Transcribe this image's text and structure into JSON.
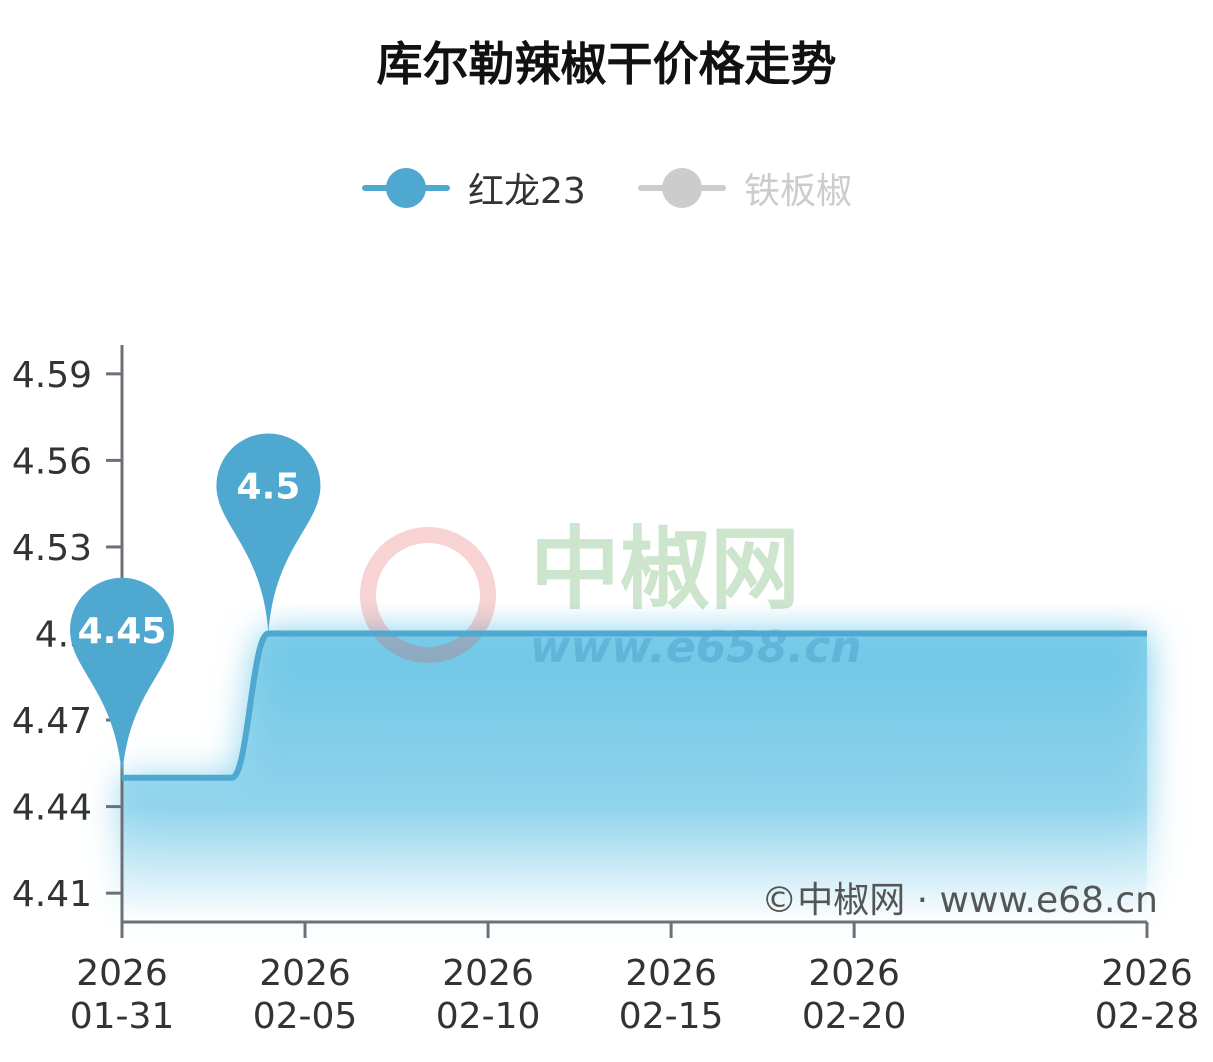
{
  "chart_data": {
    "type": "line",
    "title": "库尔勒辣椒干价格走势",
    "xlabel": "",
    "ylabel": "",
    "ylim": [
      4.4,
      4.6
    ],
    "yticks": [
      "4.41",
      "4.44",
      "4.47",
      "4.5",
      "4.53",
      "4.56",
      "4.59"
    ],
    "xticks": [
      {
        "date": "2026-01-31",
        "line1": "2026",
        "line2": "01-31"
      },
      {
        "date": "2026-02-05",
        "line1": "2026",
        "line2": "02-05"
      },
      {
        "date": "2026-02-10",
        "line1": "2026",
        "line2": "02-10"
      },
      {
        "date": "2026-02-15",
        "line1": "2026",
        "line2": "02-15"
      },
      {
        "date": "2026-02-20",
        "line1": "2026",
        "line2": "02-20"
      },
      {
        "date": "2026-02-28",
        "line1": "2026",
        "line2": "02-28"
      }
    ],
    "grid": false,
    "legend_position": "top-center",
    "series": [
      {
        "name": "红龙23",
        "color": "#4fa8cf",
        "visible": true,
        "x": [
          "2026-01-31",
          "2026-02-01",
          "2026-02-02",
          "2026-02-03",
          "2026-02-04",
          "2026-02-05",
          "2026-02-06",
          "2026-02-07",
          "2026-02-08",
          "2026-02-09",
          "2026-02-10",
          "2026-02-11",
          "2026-02-12",
          "2026-02-13",
          "2026-02-14",
          "2026-02-15",
          "2026-02-16",
          "2026-02-17",
          "2026-02-18",
          "2026-02-19",
          "2026-02-20",
          "2026-02-21",
          "2026-02-22",
          "2026-02-23",
          "2026-02-24",
          "2026-02-25",
          "2026-02-26",
          "2026-02-27",
          "2026-02-28"
        ],
        "values": [
          4.45,
          4.45,
          4.45,
          4.45,
          4.5,
          4.5,
          4.5,
          4.5,
          4.5,
          4.5,
          4.5,
          4.5,
          4.5,
          4.5,
          4.5,
          4.5,
          4.5,
          4.5,
          4.5,
          4.5,
          4.5,
          4.5,
          4.5,
          4.5,
          4.5,
          4.5,
          4.5,
          4.5,
          4.5
        ],
        "markers": [
          {
            "label": "4.45",
            "date": "2026-01-31",
            "value": 4.45
          },
          {
            "label": "4.5",
            "date": "2026-02-04",
            "value": 4.5
          }
        ]
      },
      {
        "name": "铁板椒",
        "color": "#cccccc",
        "visible": false
      }
    ],
    "watermark": {
      "name": "中椒网",
      "url": "www.e658.cn"
    },
    "copyright": "©中椒网 · www.e68.cn"
  }
}
